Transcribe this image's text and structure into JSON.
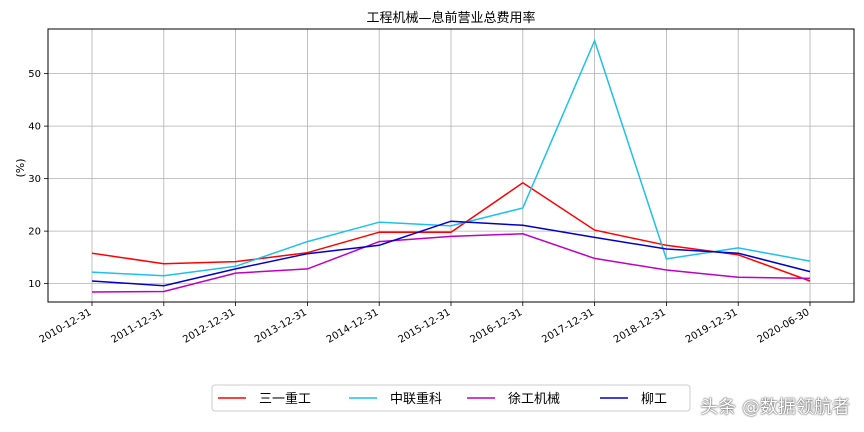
{
  "chart_data": {
    "type": "line",
    "title": "工程机械—息前营业总费用率",
    "ylabel": "(%)",
    "xlabel": "",
    "categories": [
      "2010-12-31",
      "2011-12-31",
      "2012-12-31",
      "2013-12-31",
      "2014-12-31",
      "2015-12-31",
      "2016-12-31",
      "2017-12-31",
      "2018-12-31",
      "2019-12-31",
      "2020-06-30"
    ],
    "ylim": [
      6.5,
      58.5
    ],
    "yticks": [
      10,
      20,
      30,
      40,
      50
    ],
    "grid": true,
    "legend_position": "bottom-center",
    "series": [
      {
        "name": "三一重工",
        "color": "#ff0000",
        "values": [
          15.8,
          13.8,
          14.2,
          15.9,
          19.8,
          19.8,
          29.2,
          20.2,
          17.3,
          15.5,
          10.5
        ]
      },
      {
        "name": "中联重科",
        "color": "#1ec0ee",
        "values": [
          12.2,
          11.5,
          13.3,
          18.0,
          21.7,
          21.0,
          24.4,
          56.3,
          14.7,
          16.8,
          14.3
        ]
      },
      {
        "name": "徐工机械",
        "color": "#c000c0",
        "values": [
          8.4,
          8.5,
          12.0,
          12.8,
          18.0,
          19.0,
          19.5,
          14.8,
          12.6,
          11.2,
          11.0
        ]
      },
      {
        "name": "柳工",
        "color": "#0000c8",
        "values": [
          10.5,
          9.6,
          12.8,
          15.7,
          17.3,
          21.9,
          21.1,
          18.8,
          16.6,
          15.8,
          12.3
        ]
      }
    ]
  },
  "watermark": "头条 @数据领航者"
}
